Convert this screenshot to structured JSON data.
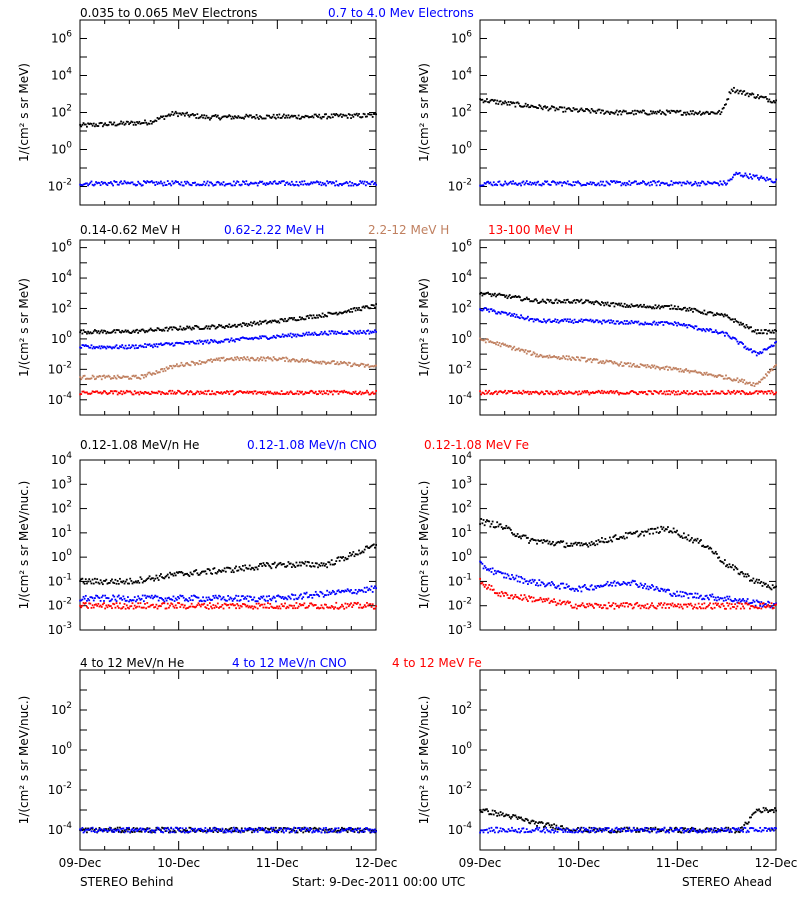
{
  "colors": {
    "black": "#000000",
    "blue": "#0000ff",
    "tan": "#c08060",
    "red": "#ff0000"
  },
  "footer": {
    "left": "STEREO Behind",
    "center": "Start:  9-Dec-2011 00:00 UTC",
    "right": "STEREO Ahead"
  },
  "x_tick_labels": [
    "09-Dec",
    "10-Dec",
    "11-Dec",
    "12-Dec"
  ],
  "chart_data": [
    {
      "row": 1,
      "type": "scatter",
      "legend": [
        {
          "label": "0.035 to 0.065 MeV Electrons",
          "color": "#000000"
        },
        {
          "label": "0.7 to 4.0 Mev Electrons",
          "color": "#0000ff"
        }
      ],
      "ylabel": "1/(cm² s sr MeV)",
      "yscale": "log",
      "ylim_exp": [
        -3,
        7
      ],
      "ytick_exps": [
        -2,
        0,
        2,
        4,
        6
      ],
      "xlim_days": [
        0,
        3
      ],
      "panels": [
        {
          "name": "STEREO Behind",
          "series": [
            {
              "color": "#000000",
              "x": [
                0,
                0.4,
                0.7,
                0.95,
                1.3,
                1.8,
                2.3,
                3.0
              ],
              "y": [
                20,
                25,
                30,
                90,
                55,
                60,
                60,
                70
              ]
            },
            {
              "color": "#0000ff",
              "x": [
                0,
                1.0,
                2.0,
                3.0
              ],
              "y": [
                0.015,
                0.015,
                0.015,
                0.015
              ]
            }
          ]
        },
        {
          "name": "STEREO Ahead",
          "series": [
            {
              "color": "#000000",
              "x": [
                0,
                0.3,
                0.8,
                1.4,
                2.0,
                2.45,
                2.55,
                2.6,
                3.0
              ],
              "y": [
                500,
                300,
                150,
                100,
                100,
                100,
                2000,
                1500,
                400
              ]
            },
            {
              "color": "#0000ff",
              "x": [
                0,
                1.0,
                2.0,
                2.5,
                2.6,
                3.0
              ],
              "y": [
                0.015,
                0.015,
                0.015,
                0.015,
                0.05,
                0.02
              ]
            }
          ]
        }
      ]
    },
    {
      "row": 2,
      "type": "scatter",
      "legend": [
        {
          "label": "0.14-0.62 MeV H",
          "color": "#000000"
        },
        {
          "label": "0.62-2.22 MeV H",
          "color": "#0000ff"
        },
        {
          "label": "2.2-12 MeV H",
          "color": "#c08060"
        },
        {
          "label": "13-100 MeV H",
          "color": "#ff0000"
        }
      ],
      "ylabel": "1/(cm² s sr MeV)",
      "yscale": "log",
      "ylim_exp": [
        -5,
        6.5
      ],
      "ytick_exps": [
        -4,
        -2,
        0,
        2,
        4,
        6
      ],
      "xlim_days": [
        0,
        3
      ],
      "panels": [
        {
          "name": "STEREO Behind",
          "series": [
            {
              "color": "#000000",
              "x": [
                0,
                0.5,
                1.0,
                1.5,
                2.0,
                2.5,
                3.0
              ],
              "y": [
                3,
                3,
                5,
                7,
                15,
                40,
                150
              ]
            },
            {
              "color": "#0000ff",
              "x": [
                0,
                0.5,
                1.0,
                1.5,
                2.0,
                2.5,
                3.0
              ],
              "y": [
                0.3,
                0.3,
                0.5,
                0.8,
                1.5,
                2.5,
                3
              ]
            },
            {
              "color": "#c08060",
              "x": [
                0,
                0.6,
                1.0,
                1.5,
                2.0,
                2.5,
                3.0
              ],
              "y": [
                0.003,
                0.003,
                0.02,
                0.05,
                0.05,
                0.03,
                0.015
              ]
            },
            {
              "color": "#ff0000",
              "x": [
                0,
                1.0,
                2.0,
                3.0
              ],
              "y": [
                0.0003,
                0.0003,
                0.0003,
                0.0003
              ]
            }
          ]
        },
        {
          "name": "STEREO Ahead",
          "series": [
            {
              "color": "#000000",
              "x": [
                0,
                0.3,
                0.6,
                1.0,
                1.5,
                2.0,
                2.5,
                2.8,
                3.0
              ],
              "y": [
                1000,
                600,
                300,
                300,
                150,
                120,
                30,
                3,
                3
              ]
            },
            {
              "color": "#0000ff",
              "x": [
                0,
                0.3,
                0.6,
                1.0,
                1.5,
                2.0,
                2.5,
                2.8,
                3.0
              ],
              "y": [
                100,
                40,
                15,
                15,
                12,
                10,
                2,
                0.1,
                0.5
              ]
            },
            {
              "color": "#c08060",
              "x": [
                0,
                0.3,
                0.6,
                1.0,
                1.5,
                2.0,
                2.5,
                2.8,
                3.0
              ],
              "y": [
                1,
                0.3,
                0.08,
                0.05,
                0.02,
                0.01,
                0.003,
                0.001,
                0.02
              ]
            },
            {
              "color": "#ff0000",
              "x": [
                0,
                1.0,
                2.0,
                3.0
              ],
              "y": [
                0.0003,
                0.0003,
                0.0003,
                0.0003
              ]
            }
          ]
        }
      ]
    },
    {
      "row": 3,
      "type": "scatter",
      "legend": [
        {
          "label": "0.12-1.08 MeV/n He",
          "color": "#000000"
        },
        {
          "label": "0.12-1.08 MeV/n CNO",
          "color": "#0000ff"
        },
        {
          "label": "0.12-1.08 MeV Fe",
          "color": "#ff0000"
        }
      ],
      "ylabel": "1/(cm² s sr MeV/nuc.)",
      "yscale": "log",
      "ylim_exp": [
        -3,
        4
      ],
      "ytick_exps": [
        -3,
        -2,
        -1,
        0,
        1,
        2,
        3,
        4
      ],
      "xlim_days": [
        0,
        3
      ],
      "panels": [
        {
          "name": "STEREO Behind",
          "series": [
            {
              "color": "#000000",
              "x": [
                0,
                0.5,
                1.0,
                1.5,
                2.0,
                2.5,
                3.0
              ],
              "y": [
                0.1,
                0.1,
                0.2,
                0.3,
                0.5,
                0.5,
                3
              ]
            },
            {
              "color": "#0000ff",
              "x": [
                0,
                1.0,
                2.0,
                3.0
              ],
              "y": [
                0.02,
                0.02,
                0.02,
                0.05
              ]
            },
            {
              "color": "#ff0000",
              "x": [
                0,
                1.0,
                2.0,
                3.0
              ],
              "y": [
                0.01,
                0.01,
                0.01,
                0.01
              ]
            }
          ]
        },
        {
          "name": "STEREO Ahead",
          "series": [
            {
              "color": "#000000",
              "x": [
                0,
                0.2,
                0.5,
                1.0,
                1.5,
                1.9,
                2.3,
                2.5,
                2.8,
                3.0
              ],
              "y": [
                30,
                20,
                5,
                3,
                8,
                15,
                3,
                0.5,
                0.1,
                0.05
              ]
            },
            {
              "color": "#0000ff",
              "x": [
                0,
                0.2,
                0.5,
                1.0,
                1.5,
                2.0,
                2.5,
                3.0
              ],
              "y": [
                0.5,
                0.2,
                0.1,
                0.05,
                0.1,
                0.03,
                0.02,
                0.01
              ]
            },
            {
              "color": "#ff0000",
              "x": [
                0,
                0.2,
                0.5,
                1.0,
                2.0,
                3.0
              ],
              "y": [
                0.1,
                0.03,
                0.02,
                0.01,
                0.01,
                0.01
              ]
            }
          ]
        }
      ]
    },
    {
      "row": 4,
      "type": "scatter",
      "legend": [
        {
          "label": "4 to 12 MeV/n He",
          "color": "#000000"
        },
        {
          "label": "4 to 12 MeV/n CNO",
          "color": "#0000ff"
        },
        {
          "label": "4 to 12 MeV Fe",
          "color": "#ff0000"
        }
      ],
      "ylabel": "1/(cm² s sr MeV/nuc.)",
      "yscale": "log",
      "ylim_exp": [
        -5,
        4
      ],
      "ytick_exps": [
        -4,
        -2,
        0,
        2
      ],
      "xlim_days": [
        0,
        3
      ],
      "panels": [
        {
          "name": "STEREO Behind",
          "series": [
            {
              "color": "#000000",
              "x": [
                0,
                1.0,
                2.0,
                3.0
              ],
              "y": [
                0.0001,
                0.0001,
                0.0001,
                0.0001
              ]
            },
            {
              "color": "#0000ff",
              "x": [
                0,
                1.0,
                2.0,
                3.0
              ],
              "y": [
                0.0001,
                0.0001,
                0.0001,
                0.0001
              ]
            }
          ]
        },
        {
          "name": "STEREO Ahead",
          "series": [
            {
              "color": "#000000",
              "x": [
                0,
                0.3,
                0.6,
                1.0,
                2.0,
                2.65,
                2.8,
                3.0
              ],
              "y": [
                0.001,
                0.0005,
                0.0002,
                0.0001,
                0.0001,
                0.0001,
                0.001,
                0.001
              ]
            },
            {
              "color": "#0000ff",
              "x": [
                0,
                1.0,
                2.0,
                3.0
              ],
              "y": [
                0.0001,
                0.0001,
                0.0001,
                0.0001
              ]
            }
          ]
        }
      ]
    }
  ]
}
